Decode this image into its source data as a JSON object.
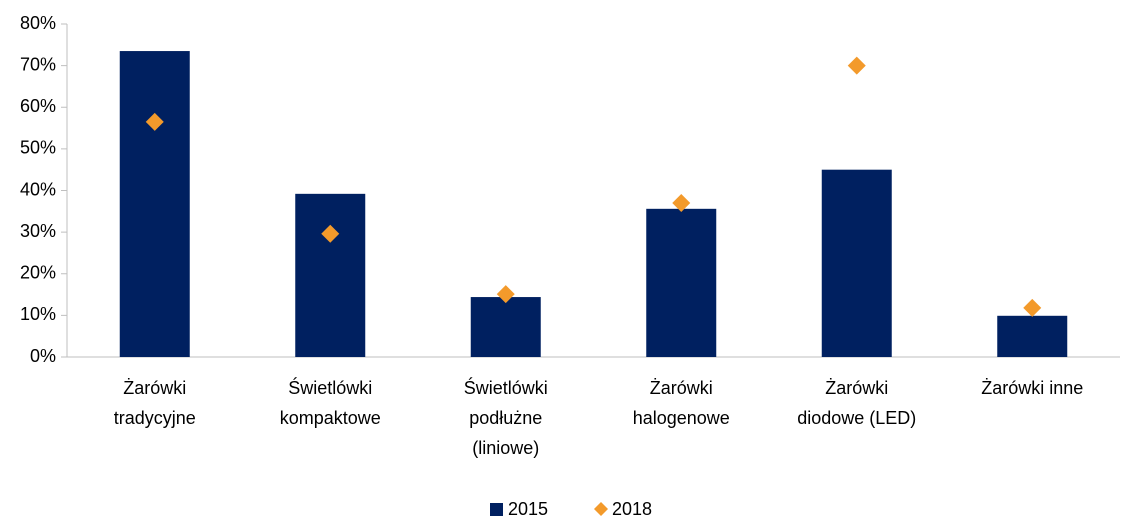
{
  "chart_data": {
    "type": "bar",
    "categories": [
      [
        "Żarówki",
        "tradycyjne"
      ],
      [
        "Świetlówki",
        "kompaktowe"
      ],
      [
        "Świetlówki",
        "podłużne",
        "(liniowe)"
      ],
      [
        "Żarówki",
        "halogenowe"
      ],
      [
        "Żarówki",
        "diodowe (LED)"
      ],
      [
        "Żarówki inne"
      ]
    ],
    "series": [
      {
        "name": "2015",
        "type": "bar",
        "color": "#002060",
        "values": [
          73.5,
          39.2,
          14.4,
          35.6,
          45,
          9.9
        ]
      },
      {
        "name": "2018",
        "type": "scatter",
        "color": "#f39a2b",
        "values": [
          56.5,
          29.6,
          15.1,
          37,
          70,
          11.8
        ]
      }
    ],
    "ylim": [
      0,
      80
    ],
    "yticks": [
      {
        "value": 0,
        "label": "0%"
      },
      {
        "value": 10,
        "label": "10%"
      },
      {
        "value": 20,
        "label": "20%"
      },
      {
        "value": 30,
        "label": "30%"
      },
      {
        "value": 40,
        "label": "40%"
      },
      {
        "value": 50,
        "label": "50%"
      },
      {
        "value": 60,
        "label": "60%"
      },
      {
        "value": 70,
        "label": "70%"
      },
      {
        "value": 80,
        "label": "80%"
      }
    ],
    "grid": false,
    "legend": "bottom"
  }
}
